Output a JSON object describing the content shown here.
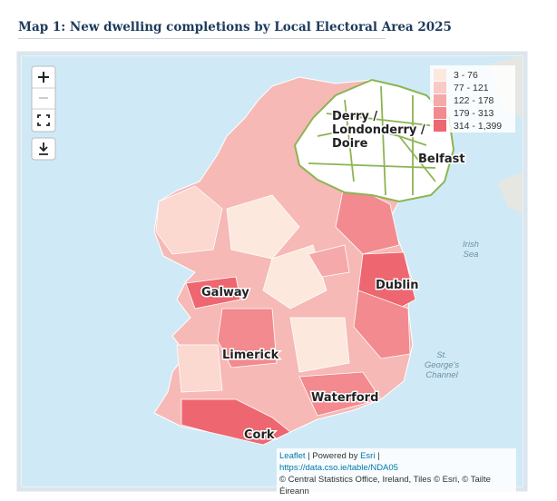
{
  "header": {
    "title": "Map 1: New dwelling completions by Local Electoral Area 2025"
  },
  "legend": {
    "items": [
      {
        "label": "3 - 76",
        "color": "#fce8dd"
      },
      {
        "label": "77 - 121",
        "color": "#f9cac5"
      },
      {
        "label": "122 - 178",
        "color": "#f5a9aa"
      },
      {
        "label": "179 - 313",
        "color": "#f28a8f"
      },
      {
        "label": "314 - 1,399",
        "color": "#ee6670"
      }
    ]
  },
  "map": {
    "place_labels": [
      {
        "lines": [
          "Derry /",
          "Londonderry /",
          "Doire"
        ]
      },
      {
        "lines": [
          "Belfast"
        ]
      },
      {
        "lines": [
          "Galway"
        ]
      },
      {
        "lines": [
          "Dublin"
        ]
      },
      {
        "lines": [
          "Limerick"
        ]
      },
      {
        "lines": [
          "Waterford"
        ]
      },
      {
        "lines": [
          "Cork"
        ]
      }
    ],
    "sea_labels": [
      {
        "lines": [
          "Irish",
          "Sea"
        ]
      },
      {
        "lines": [
          "St.",
          "George's",
          "Channel"
        ]
      }
    ]
  },
  "attribution": {
    "leaflet": "Leaflet",
    "powered_by": "| Powered by",
    "esri": "Esri",
    "separator": "|",
    "url": "https://data.cso.ie/table/NDA05",
    "copyright": "© Central Statistics Office, Ireland, Tiles © Esri, © Tailte Éireann"
  }
}
